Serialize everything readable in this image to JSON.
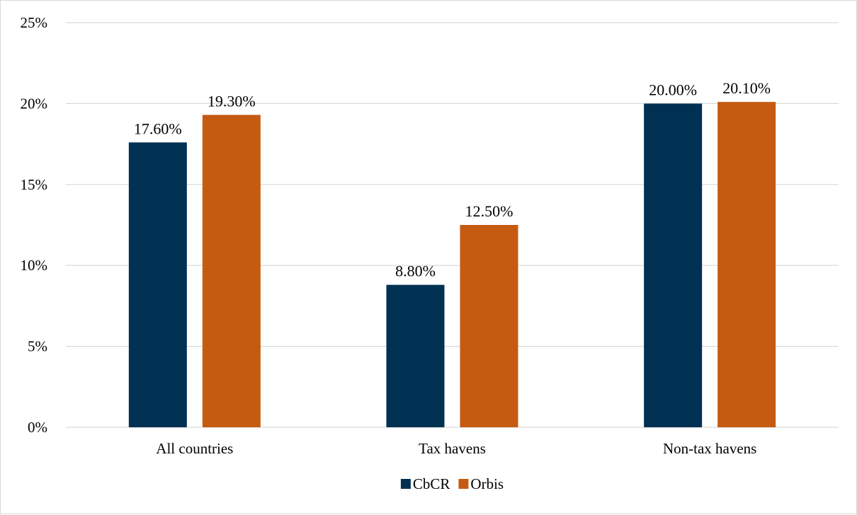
{
  "chart_data": {
    "type": "bar",
    "title": "",
    "xlabel": "",
    "ylabel": "",
    "categories": [
      "All countries",
      "Tax havens",
      "Non-tax havens"
    ],
    "series": [
      {
        "name": "CbCR",
        "color": "#003153",
        "values": [
          17.6,
          8.8,
          20.0
        ],
        "labels": [
          "17.60%",
          "8.80%",
          "20.00%"
        ]
      },
      {
        "name": "Orbis",
        "color": "#c55a11",
        "values": [
          19.3,
          12.5,
          20.1
        ],
        "labels": [
          "19.30%",
          "12.50%",
          "20.10%"
        ]
      }
    ],
    "ylim": [
      0,
      25
    ],
    "yticks": [
      0,
      5,
      10,
      15,
      20,
      25
    ],
    "ytick_labels": [
      "0%",
      "5%",
      "10%",
      "15%",
      "20%",
      "25%"
    ],
    "grid": true,
    "grid_color": "#d9d9d9",
    "legend_position": "bottom"
  }
}
